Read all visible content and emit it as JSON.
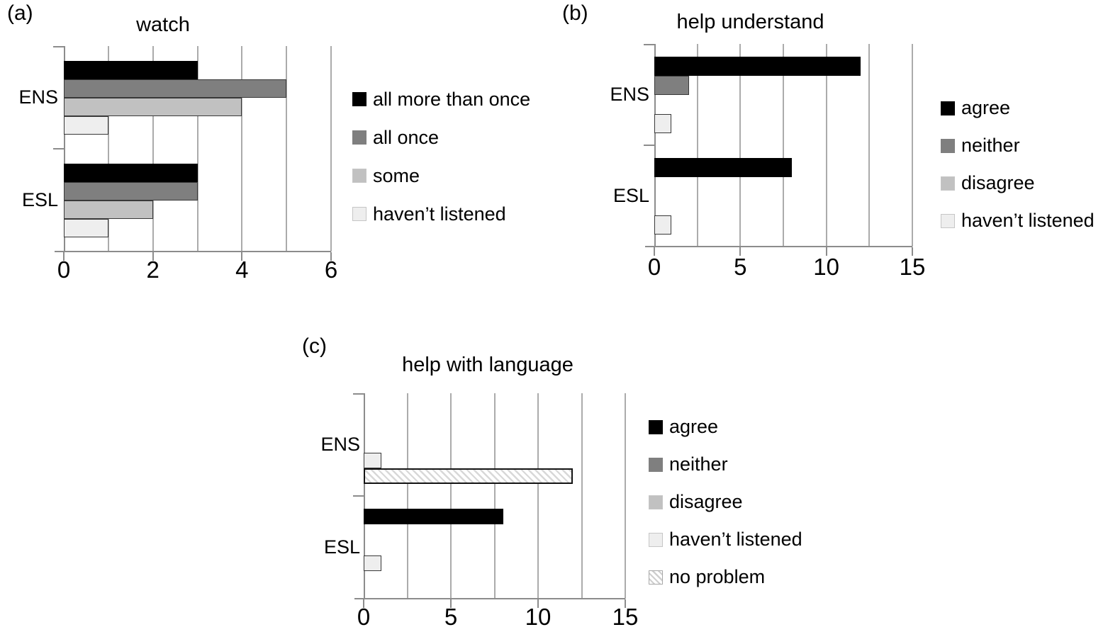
{
  "figure": {
    "background": "#ffffff",
    "text_color": "#000000",
    "axis_color": "#8c8c8c",
    "gridline_color": "#ababab"
  },
  "chart_data": [
    {
      "type": "bar",
      "orientation": "horizontal",
      "panel_label": "(a)",
      "title": "watch",
      "categories": [
        "ENS",
        "ESL"
      ],
      "series": [
        {
          "name": "all more than once",
          "color": "#000000",
          "values": [
            3,
            3
          ]
        },
        {
          "name": "all once",
          "color": "#7f7f7f",
          "values": [
            5,
            3
          ]
        },
        {
          "name": "some",
          "color": "#c1c1c1",
          "values": [
            4,
            2
          ]
        },
        {
          "name": "haven’t listened",
          "color": "#eeeeee",
          "values": [
            1,
            1
          ]
        }
      ],
      "xlim": [
        0,
        6
      ],
      "xticks": [
        0,
        2,
        4,
        6
      ],
      "grid_step": 1,
      "grid": true,
      "legend_position": "right"
    },
    {
      "type": "bar",
      "orientation": "horizontal",
      "panel_label": "(b)",
      "title": "help understand",
      "categories": [
        "ENS",
        "ESL"
      ],
      "series": [
        {
          "name": "agree",
          "color": "#000000",
          "values": [
            12,
            8
          ]
        },
        {
          "name": "neither",
          "color": "#7f7f7f",
          "values": [
            2,
            0
          ]
        },
        {
          "name": "disagree",
          "color": "#c1c1c1",
          "values": [
            0,
            0
          ]
        },
        {
          "name": "haven’t listened",
          "color": "#eeeeee",
          "values": [
            1,
            1
          ]
        }
      ],
      "xlim": [
        0,
        15
      ],
      "xticks": [
        0,
        5,
        10,
        15
      ],
      "grid_step": 2.5,
      "grid": true,
      "legend_position": "right"
    },
    {
      "type": "bar",
      "orientation": "horizontal",
      "panel_label": "(c)",
      "title": "help with language",
      "categories": [
        "ENS",
        "ESL"
      ],
      "series": [
        {
          "name": "agree",
          "color": "#000000",
          "values": [
            0,
            8
          ]
        },
        {
          "name": "neither",
          "color": "#7f7f7f",
          "values": [
            0,
            0
          ]
        },
        {
          "name": "disagree",
          "color": "#c1c1c1",
          "values": [
            0,
            0
          ]
        },
        {
          "name": "haven’t listened",
          "color": "#eeeeee",
          "values": [
            1,
            1
          ]
        },
        {
          "name": "no problem",
          "color": "#ffffff",
          "pattern": "diagonal-hatch",
          "hatch_color": "#d8d8d8",
          "values": [
            12,
            0
          ]
        }
      ],
      "xlim": [
        0,
        15
      ],
      "xticks": [
        0,
        5,
        10,
        15
      ],
      "grid_step": 2.5,
      "grid": true,
      "legend_position": "right"
    }
  ]
}
